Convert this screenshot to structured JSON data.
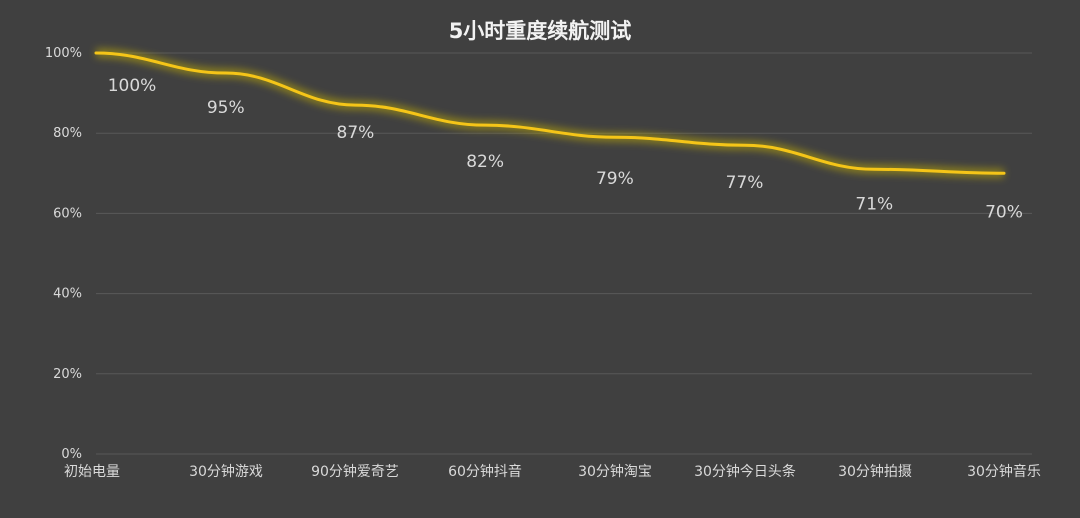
{
  "chart_data": {
    "type": "line",
    "title": "5小时重度续航测试",
    "categories": [
      "初始电量",
      "30分钟游戏",
      "90分钟爱奇艺",
      "60分钟抖音",
      "30分钟淘宝",
      "30分钟今日头条",
      "30分钟拍摄",
      "30分钟音乐"
    ],
    "series": [
      {
        "values": [
          100,
          95,
          87,
          82,
          79,
          77,
          71,
          70
        ]
      }
    ],
    "data_labels": [
      "100%",
      "95%",
      "87%",
      "82%",
      "79%",
      "77%",
      "71%",
      "70%"
    ],
    "y_ticks": [
      "0%",
      "20%",
      "40%",
      "60%",
      "80%",
      "100%"
    ],
    "ylim": [
      0,
      100
    ],
    "xlabel": "",
    "ylabel": "",
    "grid": true,
    "legend": "none"
  },
  "colors": {
    "background": "#404040",
    "line": "#f5c518",
    "glow": "#c9b400",
    "gridline": "#595959",
    "text": "#d9d9d9",
    "title": "#f2f2f2"
  }
}
